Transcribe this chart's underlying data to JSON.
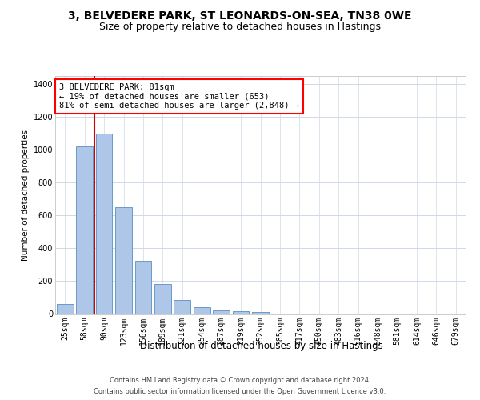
{
  "title_line1": "3, BELVEDERE PARK, ST LEONARDS-ON-SEA, TN38 0WE",
  "title_line2": "Size of property relative to detached houses in Hastings",
  "xlabel": "Distribution of detached houses by size in Hastings",
  "ylabel": "Number of detached properties",
  "footnote1": "Contains HM Land Registry data © Crown copyright and database right 2024.",
  "footnote2": "Contains public sector information licensed under the Open Government Licence v3.0.",
  "bar_labels": [
    "25sqm",
    "58sqm",
    "90sqm",
    "123sqm",
    "156sqm",
    "189sqm",
    "221sqm",
    "254sqm",
    "287sqm",
    "319sqm",
    "352sqm",
    "385sqm",
    "417sqm",
    "450sqm",
    "483sqm",
    "516sqm",
    "548sqm",
    "581sqm",
    "614sqm",
    "646sqm",
    "679sqm"
  ],
  "bar_values": [
    60,
    1020,
    1100,
    650,
    325,
    185,
    85,
    40,
    22,
    18,
    12,
    0,
    0,
    0,
    0,
    0,
    0,
    0,
    0,
    0,
    0
  ],
  "bar_color": "#aec6e8",
  "bar_edge_color": "#5a8fc0",
  "annotation_line1": "3 BELVEDERE PARK: 81sqm",
  "annotation_line2": "← 19% of detached houses are smaller (653)",
  "annotation_line3": "81% of semi-detached houses are larger (2,848) →",
  "vline_color": "#cc0000",
  "ylim": [
    0,
    1450
  ],
  "yticks": [
    0,
    200,
    400,
    600,
    800,
    1000,
    1200,
    1400
  ],
  "background_color": "#ffffff",
  "grid_color": "#d0d8e8",
  "title1_fontsize": 10,
  "title2_fontsize": 9,
  "annotation_fontsize": 7.5,
  "xlabel_fontsize": 8.5,
  "ylabel_fontsize": 7.5,
  "footnote_fontsize": 6.0,
  "tick_fontsize": 7
}
